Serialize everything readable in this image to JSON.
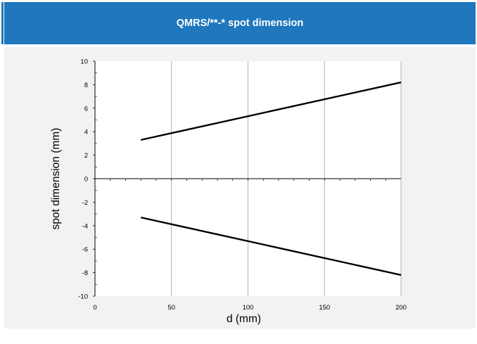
{
  "header": {
    "title": "QMRS/**-*  spot dimension"
  },
  "colors": {
    "header_bg": "#1f77bd",
    "header_text": "#ffffff",
    "panel_bg": "#f2f2f2",
    "plot_bg": "#ffffff",
    "grid": "#9f9f9f",
    "line": "#000000"
  },
  "chart_data": {
    "type": "line",
    "title": "",
    "xlabel": "d (mm)",
    "ylabel": "spot dimension (mm)",
    "xlim": [
      0,
      200
    ],
    "ylim": [
      -10,
      10
    ],
    "xticks": [
      0,
      50,
      100,
      150,
      200
    ],
    "yticks": [
      -10,
      -8,
      -6,
      -4,
      -2,
      0,
      2,
      4,
      6,
      8,
      10
    ],
    "x_tick_labels": [
      "0",
      "50",
      "100",
      "150",
      "200"
    ],
    "y_tick_labels": [
      "-10",
      "-8",
      "-6",
      "-4",
      "-2",
      "0",
      "2",
      "4",
      "6",
      "8",
      "10"
    ],
    "grid": true,
    "legend": false,
    "series": [
      {
        "x": [
          30,
          200
        ],
        "y": [
          3.3,
          8.2
        ]
      },
      {
        "x": [
          30,
          200
        ],
        "y": [
          -3.3,
          -8.2
        ]
      }
    ]
  }
}
